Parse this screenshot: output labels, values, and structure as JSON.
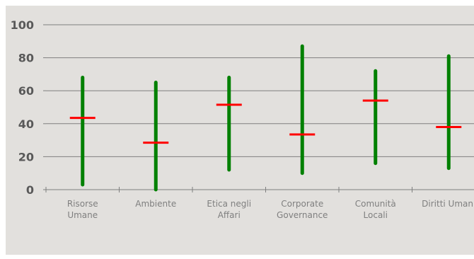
{
  "chart_data": {
    "type": "stock",
    "title": "",
    "xlabel": "",
    "ylabel": "",
    "categories": [
      [
        "Risorse",
        "Umane"
      ],
      [
        "Ambiente"
      ],
      [
        "Etica negli",
        "Affari"
      ],
      [
        "Corporate",
        "Governance"
      ],
      [
        "Comunità",
        "Locali"
      ],
      [
        "Diritti Umani"
      ]
    ],
    "high": [
      68,
      65,
      68,
      87,
      72,
      81
    ],
    "low": [
      3,
      0,
      12,
      10,
      16,
      13
    ],
    "value": [
      43.5,
      28.5,
      51.5,
      33.5,
      54,
      38
    ],
    "ylim": [
      0,
      100
    ],
    "yticks": [
      0,
      20,
      40,
      60,
      80,
      100
    ],
    "grid": true,
    "colors": {
      "range": "#008000",
      "marker": "#ff0000",
      "grid": "#7f7f7f",
      "axis": "#7f7f7f"
    }
  }
}
